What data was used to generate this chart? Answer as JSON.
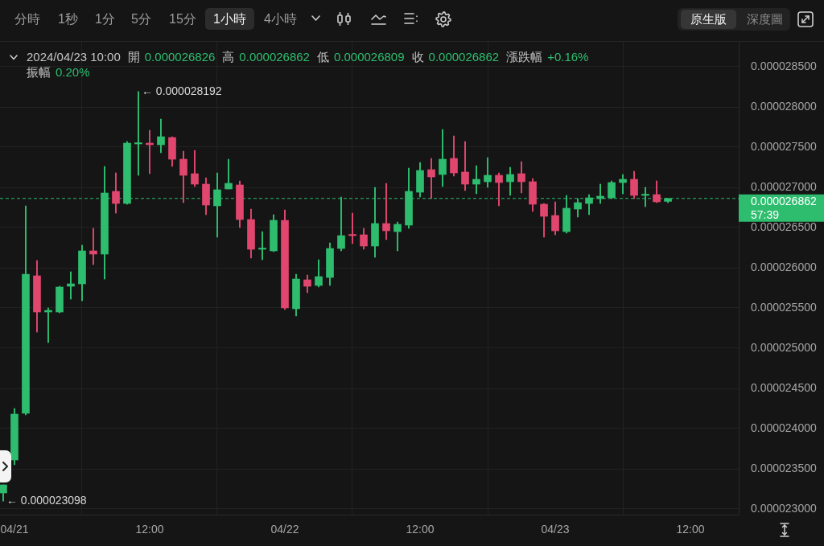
{
  "chart_data": {
    "type": "candlestick",
    "x": [
      "2024-04-20T23:00",
      "2024-04-21T00:00",
      "2024-04-21T01:00",
      "2024-04-21T02:00",
      "2024-04-21T03:00",
      "2024-04-21T04:00",
      "2024-04-21T05:00",
      "2024-04-21T06:00",
      "2024-04-21T07:00",
      "2024-04-21T08:00",
      "2024-04-21T09:00",
      "2024-04-21T10:00",
      "2024-04-21T11:00",
      "2024-04-21T12:00",
      "2024-04-21T13:00",
      "2024-04-21T14:00",
      "2024-04-21T15:00",
      "2024-04-21T16:00",
      "2024-04-21T17:00",
      "2024-04-21T18:00",
      "2024-04-21T19:00",
      "2024-04-21T20:00",
      "2024-04-21T21:00",
      "2024-04-21T22:00",
      "2024-04-21T23:00",
      "2024-04-22T00:00",
      "2024-04-22T01:00",
      "2024-04-22T02:00",
      "2024-04-22T03:00",
      "2024-04-22T04:00",
      "2024-04-22T05:00",
      "2024-04-22T06:00",
      "2024-04-22T07:00",
      "2024-04-22T08:00",
      "2024-04-22T09:00",
      "2024-04-22T10:00",
      "2024-04-22T11:00",
      "2024-04-22T12:00",
      "2024-04-22T13:00",
      "2024-04-22T14:00",
      "2024-04-22T15:00",
      "2024-04-22T16:00",
      "2024-04-22T17:00",
      "2024-04-22T18:00",
      "2024-04-22T19:00",
      "2024-04-22T20:00",
      "2024-04-22T21:00",
      "2024-04-22T22:00",
      "2024-04-22T23:00",
      "2024-04-23T00:00",
      "2024-04-23T01:00",
      "2024-04-23T02:00",
      "2024-04-23T03:00",
      "2024-04-23T04:00",
      "2024-04-23T05:00",
      "2024-04-23T06:00",
      "2024-04-23T07:00",
      "2024-04-23T08:00",
      "2024-04-23T09:00",
      "2024-04-23T10:00"
    ],
    "ohlc": [
      [
        2.32e-05,
        2.33e-05,
        2.3098e-05,
        2.33e-05
      ],
      [
        2.361e-05,
        2.425e-05,
        2.355e-05,
        2.418e-05
      ],
      [
        2.419e-05,
        2.677e-05,
        2.417e-05,
        2.592e-05
      ],
      [
        2.59e-05,
        2.609e-05,
        2.52e-05,
        2.545e-05
      ],
      [
        2.545e-05,
        2.55e-05,
        2.507e-05,
        2.547e-05
      ],
      [
        2.545e-05,
        2.577e-05,
        2.544e-05,
        2.576e-05
      ],
      [
        2.577e-05,
        2.595e-05,
        2.561e-05,
        2.58e-05
      ],
      [
        2.58e-05,
        2.628e-05,
        2.559e-05,
        2.621e-05
      ],
      [
        2.621e-05,
        2.649e-05,
        2.604e-05,
        2.617e-05
      ],
      [
        2.617e-05,
        2.726e-05,
        2.586e-05,
        2.693e-05
      ],
      [
        2.695e-05,
        2.718e-05,
        2.668e-05,
        2.68e-05
      ],
      [
        2.68e-05,
        2.757e-05,
        2.679e-05,
        2.755e-05
      ],
      [
        2.754e-05,
        2.8192e-05,
        2.715e-05,
        2.755e-05
      ],
      [
        2.755e-05,
        2.771e-05,
        2.717e-05,
        2.753e-05
      ],
      [
        2.753e-05,
        2.785e-05,
        2.743e-05,
        2.763e-05
      ],
      [
        2.762e-05,
        2.763e-05,
        2.726e-05,
        2.735e-05
      ],
      [
        2.735e-05,
        2.745e-05,
        2.681e-05,
        2.715e-05
      ],
      [
        2.717e-05,
        2.746e-05,
        2.701e-05,
        2.704e-05
      ],
      [
        2.704e-05,
        2.712e-05,
        2.666e-05,
        2.678e-05
      ],
      [
        2.677e-05,
        2.718e-05,
        2.638e-05,
        2.697e-05
      ],
      [
        2.698e-05,
        2.735e-05,
        2.698e-05,
        2.705e-05
      ],
      [
        2.703e-05,
        2.708e-05,
        2.65e-05,
        2.66e-05
      ],
      [
        2.66e-05,
        2.673e-05,
        2.612e-05,
        2.623e-05
      ],
      [
        2.623e-05,
        2.645e-05,
        2.61e-05,
        2.624e-05
      ],
      [
        2.621e-05,
        2.666e-05,
        2.62e-05,
        2.659e-05
      ],
      [
        2.659e-05,
        2.672e-05,
        2.548e-05,
        2.55e-05
      ],
      [
        2.549e-05,
        2.592e-05,
        2.54e-05,
        2.586e-05
      ],
      [
        2.585e-05,
        2.591e-05,
        2.569e-05,
        2.577e-05
      ],
      [
        2.578e-05,
        2.61e-05,
        2.576e-05,
        2.589e-05
      ],
      [
        2.588e-05,
        2.631e-05,
        2.578e-05,
        2.624e-05
      ],
      [
        2.624e-05,
        2.688e-05,
        2.621e-05,
        2.64e-05
      ],
      [
        2.641e-05,
        2.668e-05,
        2.63e-05,
        2.64e-05
      ],
      [
        2.641e-05,
        2.649e-05,
        2.623e-05,
        2.627e-05
      ],
      [
        2.627e-05,
        2.7e-05,
        2.613e-05,
        2.655e-05
      ],
      [
        2.655e-05,
        2.705e-05,
        2.635e-05,
        2.646e-05
      ],
      [
        2.645e-05,
        2.657e-05,
        2.621e-05,
        2.654e-05
      ],
      [
        2.653e-05,
        2.724e-05,
        2.649e-05,
        2.695e-05
      ],
      [
        2.694e-05,
        2.731e-05,
        2.688e-05,
        2.721e-05
      ],
      [
        2.722e-05,
        2.736e-05,
        2.686e-05,
        2.713e-05
      ],
      [
        2.716e-05,
        2.772e-05,
        2.701e-05,
        2.735e-05
      ],
      [
        2.736e-05,
        2.764e-05,
        2.714e-05,
        2.718e-05
      ],
      [
        2.719e-05,
        2.757e-05,
        2.696e-05,
        2.704e-05
      ],
      [
        2.704e-05,
        2.727e-05,
        2.692e-05,
        2.71e-05
      ],
      [
        2.707e-05,
        2.737e-05,
        2.7e-05,
        2.715e-05
      ],
      [
        2.715e-05,
        2.718e-05,
        2.677e-05,
        2.706e-05
      ],
      [
        2.707e-05,
        2.725e-05,
        2.69e-05,
        2.716e-05
      ],
      [
        2.717e-05,
        2.732e-05,
        2.693e-05,
        2.707e-05
      ],
      [
        2.707e-05,
        2.711e-05,
        2.67e-05,
        2.679e-05
      ],
      [
        2.679e-05,
        2.68e-05,
        2.638e-05,
        2.664e-05
      ],
      [
        2.665e-05,
        2.682e-05,
        2.641e-05,
        2.646e-05
      ],
      [
        2.645e-05,
        2.69e-05,
        2.643e-05,
        2.674e-05
      ],
      [
        2.673e-05,
        2.686e-05,
        2.663e-05,
        2.681e-05
      ],
      [
        2.68e-05,
        2.691e-05,
        2.666e-05,
        2.687e-05
      ],
      [
        2.686e-05,
        2.704e-05,
        2.68e-05,
        2.689e-05
      ],
      [
        2.687e-05,
        2.708e-05,
        2.686e-05,
        2.706e-05
      ],
      [
        2.706e-05,
        2.716e-05,
        2.692e-05,
        2.71e-05
      ],
      [
        2.71e-05,
        2.72e-05,
        2.686e-05,
        2.69e-05
      ],
      [
        2.69e-05,
        2.7e-05,
        2.676e-05,
        2.691e-05
      ],
      [
        2.691e-05,
        2.708e-05,
        2.681e-05,
        2.682e-05
      ],
      [
        2.6826e-05,
        2.6862e-05,
        2.6809e-05,
        2.6862e-05
      ]
    ],
    "colors": [
      "#2ebd6e",
      "#2ebd6e",
      "#2ebd6e",
      "#e0466e",
      "#2ebd6e",
      "#2ebd6e",
      "#2ebd6e",
      "#2ebd6e",
      "#e0466e",
      "#2ebd6e",
      "#e0466e",
      "#2ebd6e",
      "#2ebd6e",
      "#e0466e",
      "#2ebd6e",
      "#e0466e",
      "#e0466e",
      "#e0466e",
      "#e0466e",
      "#2ebd6e",
      "#2ebd6e",
      "#e0466e",
      "#e0466e",
      "#2ebd6e",
      "#2ebd6e",
      "#e0466e",
      "#2ebd6e",
      "#e0466e",
      "#2ebd6e",
      "#2ebd6e",
      "#2ebd6e",
      "#e0466e",
      "#e0466e",
      "#2ebd6e",
      "#e0466e",
      "#2ebd6e",
      "#2ebd6e",
      "#2ebd6e",
      "#e0466e",
      "#2ebd6e",
      "#e0466e",
      "#e0466e",
      "#2ebd6e",
      "#2ebd6e",
      "#e0466e",
      "#2ebd6e",
      "#e0466e",
      "#e0466e",
      "#e0466e",
      "#e0466e",
      "#2ebd6e",
      "#2ebd6e",
      "#2ebd6e",
      "#2ebd6e",
      "#2ebd6e",
      "#2ebd6e",
      "#e0466e",
      "#2ebd6e",
      "#e0466e",
      "#2ebd6e"
    ],
    "xlim": [
      "2024-04-20T22:43",
      "2024-04-23T16:17"
    ],
    "xticks": [
      {
        "value": "2024-04-21",
        "label": "04/21"
      },
      {
        "value": "2024-04-21T12:00",
        "label": "12:00"
      },
      {
        "value": "2024-04-22",
        "label": "04/22"
      },
      {
        "value": "2024-04-22T12:00",
        "label": "12:00"
      },
      {
        "value": "2024-04-23",
        "label": "04/23"
      },
      {
        "value": "2024-04-23T12:00",
        "label": "12:00"
      }
    ],
    "ylim": [
      2.293e-05,
      2.881e-05
    ],
    "yticks": [
      {
        "value": 2.3e-05,
        "label": "0.000023000"
      },
      {
        "value": 2.35e-05,
        "label": "0.000023500"
      },
      {
        "value": 2.4e-05,
        "label": "0.000024000"
      },
      {
        "value": 2.45e-05,
        "label": "0.000024500"
      },
      {
        "value": 2.5e-05,
        "label": "0.000025000"
      },
      {
        "value": 2.55e-05,
        "label": "0.000025500"
      },
      {
        "value": 2.6e-05,
        "label": "0.000026000"
      },
      {
        "value": 2.65e-05,
        "label": "0.000026500"
      },
      {
        "value": 2.7e-05,
        "label": "0.000027000"
      },
      {
        "value": 2.75e-05,
        "label": "0.000027500"
      },
      {
        "value": 2.8e-05,
        "label": "0.000028000"
      },
      {
        "value": 2.85e-05,
        "label": "0.000028500"
      }
    ],
    "grid": true,
    "ref_lines": [
      {
        "axis": "y",
        "value": 2.6862e-05,
        "label": "0.000026862",
        "color": "#2ebd6e",
        "line_style": "dashed"
      }
    ],
    "annotations": [
      "分時",
      "1秒",
      "1分",
      "5分",
      "15分",
      "1小時",
      "4小時",
      "原生版",
      "深度圖",
      "2024/04/23 10:00",
      "開 0.000026826",
      "高 0.000026862",
      "低 0.000026809",
      "收 0.000026862",
      "漲跌幅 +0.16%",
      "振幅 0.20%",
      {
        "text": "← 0.000028192",
        "x": "2024-04-21T11:00",
        "y": 2.8192e-05
      },
      {
        "text": "← 0.000023098",
        "x": "2024-04-20T23:00",
        "y": 2.3098e-05
      },
      "57:39"
    ]
  }
}
